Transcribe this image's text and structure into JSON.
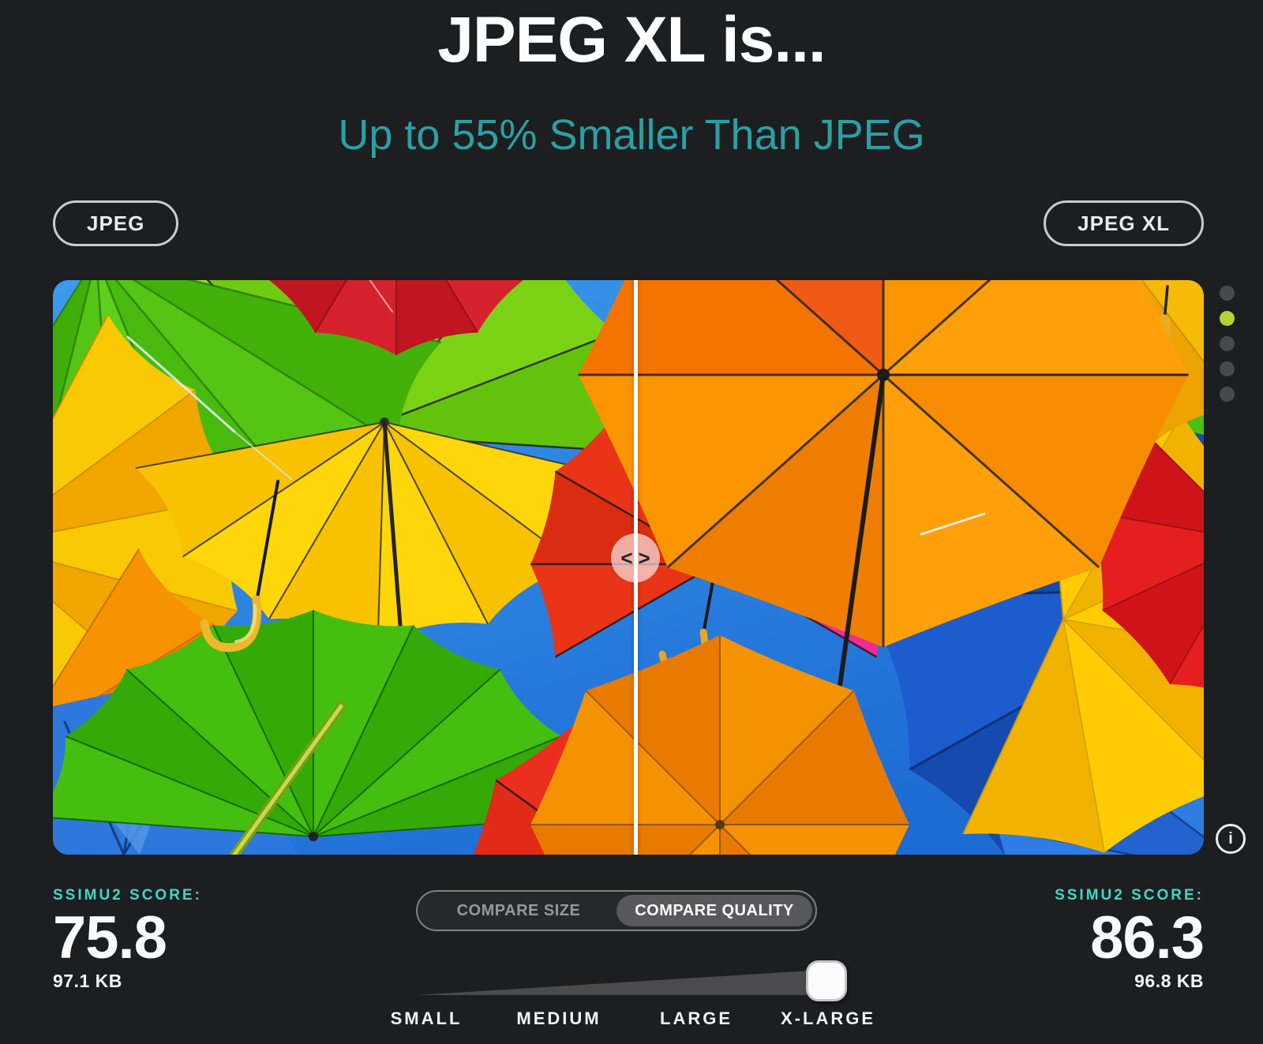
{
  "page": {
    "title": "JPEG XL is...",
    "subtitle": "Up to 55% Smaller Than JPEG"
  },
  "colors": {
    "background": "#1c1e20",
    "subtitle_teal": "#2ba0a2",
    "score_label_teal": "#3fd8c6",
    "active_dot": "#b5d335",
    "inactive_dot": "#47494d"
  },
  "format_badges": {
    "left": "JPEG",
    "right": "JPEG XL"
  },
  "comparison_viewer": {
    "divider_handle_icon": "chevron-left-right",
    "handle_glyph_left": "<",
    "handle_glyph_right": ">",
    "info_icon_glyph": "i",
    "pagination_dots": {
      "count": 5,
      "active_index": 1
    }
  },
  "jpeg_panel": {
    "score_label": "SSIMU2 SCORE:",
    "score_value": "75.8",
    "file_size": "97.1 KB"
  },
  "jpegxl_panel": {
    "score_label": "SSIMU2 SCORE:",
    "score_value": "86.3",
    "file_size": "96.8 KB"
  },
  "mode_toggle": {
    "options": [
      {
        "label": "COMPARE SIZE",
        "selected": false
      },
      {
        "label": "COMPARE QUALITY",
        "selected": true
      }
    ]
  },
  "size_slider": {
    "labels": [
      "SMALL",
      "MEDIUM",
      "LARGE",
      "X-LARGE"
    ],
    "selected": "X-LARGE"
  }
}
